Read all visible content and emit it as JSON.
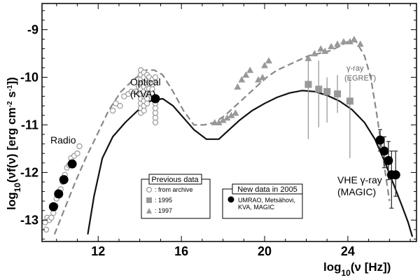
{
  "chart_data": {
    "type": "scatter",
    "xlabel_prefix": "log",
    "xlabel_sub": "10",
    "xlabel_body": "(ν [Hz])",
    "ylabel_prefix": "log",
    "ylabel_sub": "10",
    "ylabel_body": "(νf(ν) [erg cm",
    "ylabel_sup1": "-2",
    "ylabel_mid": " s",
    "ylabel_sup2": "-1",
    "ylabel_end": "])",
    "xlim": [
      9.3,
      27.3
    ],
    "ylim": [
      -13.45,
      -8.45
    ],
    "xticks": [
      12,
      16,
      20,
      24
    ],
    "yticks": [
      -9,
      -10,
      -11,
      -12,
      -13
    ],
    "annotations": {
      "radio": "Radio",
      "optical": "Optical",
      "optical_sub": "(KVA)",
      "gamma": "γ-ray",
      "gamma_sub": "(EGRET)",
      "vhe": "VHE γ-ray",
      "vhe_sub": "(MAGIC)"
    },
    "legend_previous": {
      "title": "Previous data",
      "items": [
        {
          "marker": "open-circle",
          "label": ": from archive"
        },
        {
          "marker": "square",
          "label": ": 1995"
        },
        {
          "marker": "triangle",
          "label": ": 1997"
        }
      ]
    },
    "legend_new": {
      "title": "New data in 2005",
      "marker": "filled-circle",
      "label_line1": "UMRAO, Metsähovi,",
      "label_line2": "KVA, MAGIC"
    },
    "series": [
      {
        "name": "from archive",
        "marker": "open-circle",
        "points": [
          [
            9.45,
            -13.05
          ],
          [
            9.5,
            -13.2
          ],
          [
            9.55,
            -12.95
          ],
          [
            9.65,
            -13.0
          ],
          [
            9.75,
            -12.95
          ],
          [
            9.85,
            -12.85
          ],
          [
            9.95,
            -12.7
          ],
          [
            10.0,
            -12.55
          ],
          [
            10.1,
            -12.4
          ],
          [
            10.2,
            -12.35
          ],
          [
            10.3,
            -12.2
          ],
          [
            10.4,
            -12.05
          ],
          [
            10.5,
            -11.9
          ],
          [
            10.6,
            -11.85
          ],
          [
            10.7,
            -11.7
          ],
          [
            10.85,
            -11.65
          ],
          [
            11.0,
            -11.6
          ],
          [
            11.1,
            -11.45
          ],
          [
            12.7,
            -10.7
          ],
          [
            12.85,
            -10.55
          ],
          [
            13.05,
            -10.6
          ],
          [
            13.25,
            -10.4
          ],
          [
            13.45,
            -10.35
          ],
          [
            13.6,
            -10.3
          ],
          [
            13.8,
            -10.3
          ],
          [
            13.95,
            -10.2
          ],
          [
            14.05,
            -9.85
          ],
          [
            14.05,
            -9.95
          ],
          [
            14.05,
            -10.05
          ],
          [
            14.05,
            -10.15
          ],
          [
            14.05,
            -10.25
          ],
          [
            14.05,
            -10.35
          ],
          [
            14.05,
            -10.45
          ],
          [
            14.05,
            -10.55
          ],
          [
            14.05,
            -10.65
          ],
          [
            14.05,
            -10.75
          ],
          [
            14.2,
            -9.9
          ],
          [
            14.2,
            -10.0
          ],
          [
            14.2,
            -10.1
          ],
          [
            14.2,
            -10.2
          ],
          [
            14.2,
            -10.3
          ],
          [
            14.2,
            -10.4
          ],
          [
            14.2,
            -10.5
          ],
          [
            14.2,
            -10.6
          ],
          [
            14.2,
            -10.7
          ],
          [
            14.35,
            -9.95
          ],
          [
            14.35,
            -10.05
          ],
          [
            14.35,
            -10.15
          ],
          [
            14.35,
            -10.25
          ],
          [
            14.35,
            -10.35
          ],
          [
            14.35,
            -10.45
          ],
          [
            14.35,
            -10.55
          ],
          [
            14.45,
            -10.0
          ],
          [
            14.45,
            -10.12
          ],
          [
            14.45,
            -10.24
          ],
          [
            14.45,
            -10.36
          ],
          [
            14.6,
            -10.05
          ],
          [
            14.6,
            -10.15
          ],
          [
            14.6,
            -10.25
          ],
          [
            14.6,
            -10.35
          ],
          [
            14.75,
            -10.0
          ],
          [
            14.75,
            -10.1
          ],
          [
            14.75,
            -10.55
          ],
          [
            14.75,
            -10.65
          ],
          [
            14.75,
            -10.75
          ],
          [
            14.75,
            -10.85
          ],
          [
            14.75,
            -10.95
          ]
        ]
      },
      {
        "name": "1995",
        "marker": "square",
        "points": [
          [
            22.1,
            -10.15
          ],
          [
            22.6,
            -10.25
          ],
          [
            23.0,
            -10.3
          ],
          [
            23.5,
            -10.35
          ],
          [
            24.1,
            -10.5
          ]
        ],
        "err_low": [
          -11.3,
          -11.05,
          -10.95,
          -10.75,
          -11.7
        ],
        "err_high": [
          -9.55,
          -9.65,
          -10.0,
          -9.95,
          -10.0
        ]
      },
      {
        "name": "1997",
        "marker": "triangle",
        "points": [
          [
            17.6,
            -10.95
          ],
          [
            17.8,
            -10.95
          ],
          [
            18.0,
            -10.9
          ],
          [
            18.2,
            -10.85
          ],
          [
            18.4,
            -10.8
          ],
          [
            18.6,
            -10.75
          ],
          [
            18.7,
            -10.2
          ],
          [
            18.9,
            -10.05
          ],
          [
            19.1,
            -9.95
          ],
          [
            19.3,
            -9.85
          ],
          [
            19.7,
            -10.05
          ],
          [
            19.9,
            -10.0
          ],
          [
            20.0,
            -9.75
          ],
          [
            20.2,
            -9.65
          ],
          [
            22.1,
            -9.6
          ],
          [
            22.4,
            -9.5
          ],
          [
            22.7,
            -9.4
          ],
          [
            22.9,
            -9.45
          ],
          [
            23.2,
            -9.35
          ],
          [
            23.5,
            -9.3
          ],
          [
            23.8,
            -9.25
          ],
          [
            24.1,
            -9.25
          ],
          [
            24.3,
            -9.2
          ],
          [
            24.6,
            -9.3
          ]
        ]
      },
      {
        "name": "New data in 2005",
        "marker": "filled-circle",
        "points": [
          [
            9.85,
            -12.72
          ],
          [
            10.1,
            -12.45
          ],
          [
            10.35,
            -12.15
          ],
          [
            10.75,
            -11.82
          ],
          [
            14.75,
            -10.45
          ],
          [
            25.55,
            -11.32
          ],
          [
            25.75,
            -11.55
          ],
          [
            25.95,
            -11.75
          ],
          [
            26.1,
            -12.05
          ],
          [
            26.3,
            -12.05
          ]
        ],
        "err_low": [
          null,
          null,
          null,
          null,
          null,
          -11.55,
          -11.9,
          -12.15,
          -12.75,
          -12.5
        ],
        "err_high": [
          null,
          null,
          null,
          null,
          null,
          -11.1,
          -11.25,
          -11.35,
          -11.55,
          -11.55
        ]
      }
    ],
    "curves": [
      {
        "name": "model solid",
        "style": "solid",
        "x": [
          11.5,
          11.8,
          12.2,
          12.7,
          13.3,
          13.9,
          14.5,
          15.1,
          15.6,
          16.1,
          16.6,
          17.2,
          17.8,
          18.3,
          18.8,
          19.4,
          20.0,
          20.6,
          21.2,
          21.8,
          22.4,
          23.0,
          23.6,
          24.2,
          24.8,
          25.3,
          25.8,
          26.2,
          26.6,
          26.9,
          27.1
        ],
        "y": [
          -13.3,
          -12.5,
          -11.7,
          -11.25,
          -10.95,
          -10.7,
          -10.5,
          -10.45,
          -10.6,
          -10.85,
          -11.1,
          -11.3,
          -11.3,
          -11.1,
          -10.9,
          -10.7,
          -10.55,
          -10.42,
          -10.33,
          -10.28,
          -10.3,
          -10.38,
          -10.5,
          -10.68,
          -10.95,
          -11.3,
          -11.8,
          -12.25,
          -12.7,
          -13.05,
          -13.35
        ]
      },
      {
        "name": "model dashed",
        "style": "dashed",
        "x": [
          9.9,
          10.4,
          10.9,
          11.4,
          11.9,
          12.5,
          13.1,
          13.7,
          14.3,
          14.7,
          15.1,
          15.6,
          16.1,
          16.6,
          17.1,
          17.6,
          18.1,
          18.6,
          19.1,
          19.6,
          20.1,
          20.6,
          21.1,
          21.6,
          22.1,
          22.6,
          23.1,
          23.6,
          24.0,
          24.4,
          24.8,
          25.1,
          25.4,
          25.7,
          26.0
        ],
        "y": [
          -13.3,
          -12.75,
          -12.2,
          -11.7,
          -11.25,
          -10.7,
          -10.3,
          -10.05,
          -9.85,
          -9.85,
          -9.95,
          -10.3,
          -10.7,
          -11.0,
          -11.0,
          -10.95,
          -10.8,
          -10.6,
          -10.4,
          -10.2,
          -10.0,
          -9.85,
          -9.75,
          -9.65,
          -9.55,
          -9.5,
          -9.45,
          -9.35,
          -9.25,
          -9.25,
          -9.55,
          -10.0,
          -10.8,
          -11.7,
          -12.6
        ]
      }
    ]
  },
  "colors": {
    "axis": "#000000",
    "data_grey": "#999999",
    "dashed_line": "#888888",
    "solid_line": "#111111",
    "filled_marker": "#000000"
  }
}
